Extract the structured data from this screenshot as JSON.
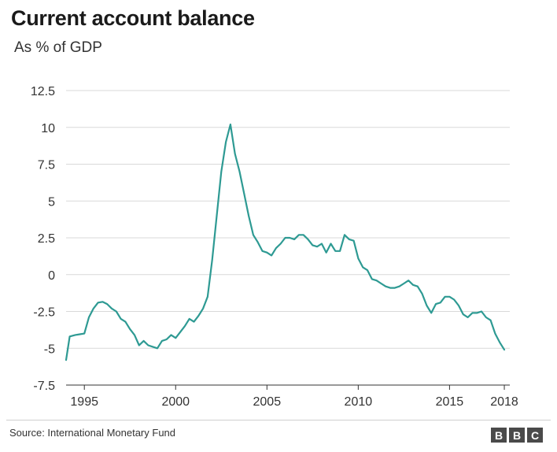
{
  "chart_data": {
    "type": "line",
    "title": "Current account balance",
    "subtitle": "As % of GDP",
    "xlabel": "",
    "ylabel": "",
    "xlim": [
      1994,
      2018.3
    ],
    "ylim": [
      -7.5,
      12.5
    ],
    "yticks": [
      "12.5",
      "10",
      "7.5",
      "5",
      "2.5",
      "0",
      "-2.5",
      "-5",
      "-7.5"
    ],
    "xticks": [
      "1995",
      "2000",
      "2005",
      "2010",
      "2015",
      "2018"
    ],
    "grid": true,
    "legend": "none",
    "line_color": "#2e9a93",
    "series": [
      {
        "x": [
          1994.0,
          1994.2,
          1994.5,
          1994.75,
          1995.0,
          1995.25,
          1995.5,
          1995.75,
          1996.0,
          1996.25,
          1996.5,
          1996.75,
          1997.0,
          1997.25,
          1997.5,
          1997.75,
          1998.0,
          1998.25,
          1998.5,
          1998.75,
          1999.0,
          1999.25,
          1999.5,
          1999.75,
          2000.0,
          2000.25,
          2000.5,
          2000.75,
          2001.0,
          2001.25,
          2001.5,
          2001.75,
          2002.0,
          2002.25,
          2002.5,
          2002.75,
          2003.0,
          2003.25,
          2003.5,
          2003.75,
          2004.0,
          2004.25,
          2004.5,
          2004.75,
          2005.0,
          2005.25,
          2005.5,
          2005.75,
          2006.0,
          2006.25,
          2006.5,
          2006.75,
          2007.0,
          2007.25,
          2007.5,
          2007.75,
          2008.0,
          2008.25,
          2008.5,
          2008.75,
          2009.0,
          2009.25,
          2009.5,
          2009.75,
          2010.0,
          2010.25,
          2010.5,
          2010.75,
          2011.0,
          2011.25,
          2011.5,
          2011.75,
          2012.0,
          2012.25,
          2012.5,
          2012.75,
          2013.0,
          2013.25,
          2013.5,
          2013.75,
          2014.0,
          2014.25,
          2014.5,
          2014.75,
          2015.0,
          2015.25,
          2015.5,
          2015.75,
          2016.0,
          2016.25,
          2016.5,
          2016.75,
          2017.0,
          2017.25,
          2017.5,
          2017.75,
          2018.0
        ],
        "y": [
          -5.8,
          -4.2,
          -4.1,
          -4.05,
          -4.0,
          -2.9,
          -2.3,
          -1.9,
          -1.85,
          -2.0,
          -2.3,
          -2.5,
          -3.0,
          -3.2,
          -3.7,
          -4.1,
          -4.8,
          -4.5,
          -4.8,
          -4.9,
          -5.0,
          -4.5,
          -4.4,
          -4.1,
          -4.3,
          -3.9,
          -3.5,
          -3.0,
          -3.2,
          -2.8,
          -2.3,
          -1.5,
          1.0,
          4.0,
          7.0,
          9.0,
          10.2,
          8.2,
          7.0,
          5.5,
          4.0,
          2.7,
          2.2,
          1.6,
          1.5,
          1.3,
          1.8,
          2.1,
          2.5,
          2.5,
          2.4,
          2.7,
          2.7,
          2.4,
          2.0,
          1.9,
          2.1,
          1.5,
          2.1,
          1.6,
          1.6,
          2.7,
          2.4,
          2.3,
          1.1,
          0.5,
          0.3,
          -0.3,
          -0.4,
          -0.6,
          -0.8,
          -0.9,
          -0.9,
          -0.8,
          -0.6,
          -0.4,
          -0.7,
          -0.8,
          -1.3,
          -2.1,
          -2.6,
          -2.0,
          -1.9,
          -1.5,
          -1.5,
          -1.7,
          -2.1,
          -2.7,
          -2.9,
          -2.6,
          -2.6,
          -2.5,
          -2.9,
          -3.1,
          -4.0,
          -4.6,
          -5.1
        ]
      }
    ]
  },
  "footer": {
    "source": "Source: International Monetary Fund",
    "logo_letters": [
      "B",
      "B",
      "C"
    ]
  }
}
